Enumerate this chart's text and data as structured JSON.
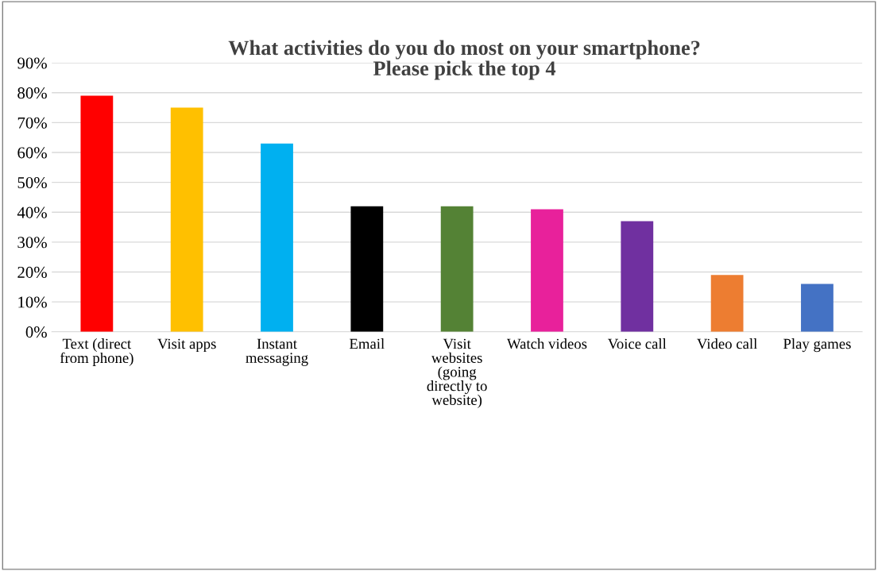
{
  "chart_data": {
    "type": "bar",
    "title": "What activities do you do most on your smartphone? Please pick the top 4",
    "categories": [
      "Text (direct from phone)",
      "Visit apps",
      "Instant messaging",
      "Email",
      "Visit websites (going directly to website)",
      "Watch videos",
      "Voice call",
      "Video call",
      "Play games"
    ],
    "values": [
      79,
      75,
      63,
      42,
      42,
      41,
      37,
      19,
      16
    ],
    "colors": [
      "#ff0000",
      "#ffc000",
      "#00b0f0",
      "#000000",
      "#548235",
      "#e8219b",
      "#7030a0",
      "#ed7d31",
      "#4472c4"
    ],
    "ylim": [
      0,
      90
    ],
    "yticks": [
      {
        "value": 0,
        "label": "0%"
      },
      {
        "value": 10,
        "label": "10%"
      },
      {
        "value": 20,
        "label": "20%"
      },
      {
        "value": 30,
        "label": "30%"
      },
      {
        "value": 40,
        "label": "40%"
      },
      {
        "value": 50,
        "label": "50%"
      },
      {
        "value": 60,
        "label": "60%"
      },
      {
        "value": 70,
        "label": "70%"
      },
      {
        "value": 80,
        "label": "80%"
      },
      {
        "value": 90,
        "label": "90%"
      }
    ],
    "grid": "y"
  }
}
